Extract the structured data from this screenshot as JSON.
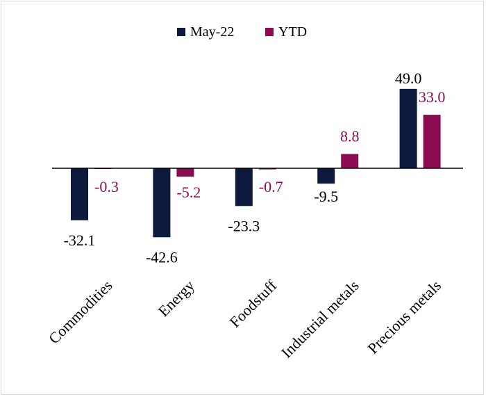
{
  "chart_data": {
    "type": "bar",
    "title": "",
    "xlabel": "",
    "ylabel": "",
    "categories": [
      "Commodities",
      "Energy",
      "Foodstuff",
      "Industrial metals",
      "Precious metals"
    ],
    "series": [
      {
        "name": "May-22",
        "color": "#0d1a3d",
        "values": [
          -32.1,
          -42.6,
          -23.3,
          -9.5,
          49.0
        ],
        "labels": [
          "-32.1",
          "-42.6",
          "-23.3",
          "-9.5",
          "49.0"
        ]
      },
      {
        "name": "YTD",
        "color": "#8b0a50",
        "values": [
          -0.3,
          -5.2,
          -0.7,
          8.8,
          33.0
        ],
        "labels": [
          "-0.3",
          "-5.2",
          "-0.7",
          "8.8",
          "33.0"
        ]
      }
    ],
    "legend_position": "top",
    "grid": false
  }
}
